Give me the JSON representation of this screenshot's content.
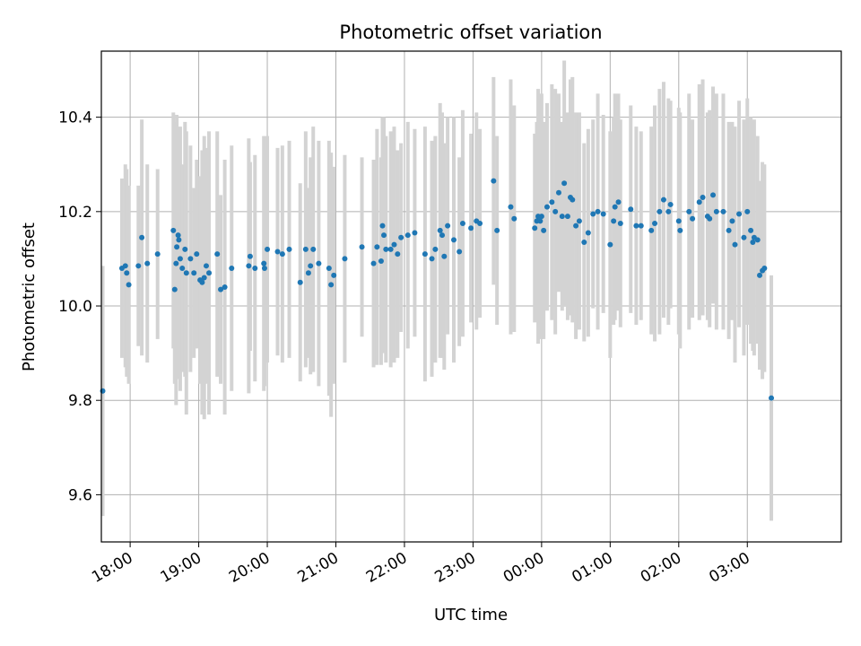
{
  "chart_data": {
    "type": "scatter",
    "title": "Photometric offset variation",
    "xlabel": "UTC time",
    "ylabel": "Photometric offset",
    "xlim": [
      17.58,
      28.37
    ],
    "ylim": [
      9.5,
      10.54
    ],
    "grid": true,
    "x_ticks": [
      {
        "value": 18,
        "label": "18:00"
      },
      {
        "value": 19,
        "label": "19:00"
      },
      {
        "value": 20,
        "label": "20:00"
      },
      {
        "value": 21,
        "label": "21:00"
      },
      {
        "value": 22,
        "label": "22:00"
      },
      {
        "value": 23,
        "label": "23:00"
      },
      {
        "value": 24,
        "label": "00:00"
      },
      {
        "value": 25,
        "label": "01:00"
      },
      {
        "value": 26,
        "label": "02:00"
      },
      {
        "value": 27,
        "label": "03:00"
      }
    ],
    "y_ticks": [
      {
        "value": 9.6,
        "label": "9.6"
      },
      {
        "value": 9.8,
        "label": "9.8"
      },
      {
        "value": 10.0,
        "label": "10.0"
      },
      {
        "value": 10.2,
        "label": "10.2"
      },
      {
        "value": 10.4,
        "label": "10.4"
      }
    ],
    "series": [
      {
        "name": "Photometric offset",
        "marker_color": "#1f77b4",
        "errorbar_color": "#d3d3d3",
        "points": [
          [
            17.6,
            9.82,
            0.265
          ],
          [
            17.88,
            10.08,
            0.19
          ],
          [
            17.93,
            10.085,
            0.215
          ],
          [
            17.95,
            10.07,
            0.22
          ],
          [
            17.98,
            10.045,
            0.21
          ],
          [
            18.12,
            10.085,
            0.17
          ],
          [
            18.17,
            10.145,
            0.25
          ],
          [
            18.25,
            10.09,
            0.21
          ],
          [
            18.4,
            10.11,
            0.18
          ],
          [
            18.63,
            10.16,
            0.25
          ],
          [
            18.65,
            10.035,
            0.2
          ],
          [
            18.67,
            10.09,
            0.3
          ],
          [
            18.68,
            10.125,
            0.28
          ],
          [
            18.7,
            10.15,
            0.22
          ],
          [
            18.71,
            10.14,
            0.235
          ],
          [
            18.73,
            10.1,
            0.28
          ],
          [
            18.76,
            10.08,
            0.22
          ],
          [
            18.8,
            10.12,
            0.27
          ],
          [
            18.82,
            10.07,
            0.3
          ],
          [
            18.88,
            10.1,
            0.24
          ],
          [
            18.93,
            10.07,
            0.18
          ],
          [
            18.97,
            10.11,
            0.2
          ],
          [
            19.02,
            10.055,
            0.22
          ],
          [
            19.05,
            10.05,
            0.28
          ],
          [
            19.08,
            10.06,
            0.3
          ],
          [
            19.11,
            10.085,
            0.25
          ],
          [
            19.15,
            10.07,
            0.3
          ],
          [
            19.27,
            10.11,
            0.26
          ],
          [
            19.32,
            10.035,
            0.2
          ],
          [
            19.38,
            10.04,
            0.27
          ],
          [
            19.48,
            10.08,
            0.26
          ],
          [
            19.73,
            10.085,
            0.27
          ],
          [
            19.75,
            10.105,
            0.2
          ],
          [
            19.82,
            10.08,
            0.24
          ],
          [
            19.95,
            10.09,
            0.27
          ],
          [
            19.96,
            10.08,
            0.25
          ],
          [
            20.0,
            10.12,
            0.24
          ],
          [
            20.15,
            10.115,
            0.22
          ],
          [
            20.22,
            10.11,
            0.23
          ],
          [
            20.32,
            10.12,
            0.23
          ],
          [
            20.48,
            10.05,
            0.21
          ],
          [
            20.56,
            10.12,
            0.25
          ],
          [
            20.6,
            10.07,
            0.18
          ],
          [
            20.63,
            10.085,
            0.23
          ],
          [
            20.67,
            10.12,
            0.26
          ],
          [
            20.75,
            10.09,
            0.26
          ],
          [
            20.9,
            10.08,
            0.27
          ],
          [
            20.93,
            10.045,
            0.28
          ],
          [
            20.97,
            10.065,
            0.23
          ],
          [
            21.13,
            10.1,
            0.22
          ],
          [
            21.38,
            10.125,
            0.19
          ],
          [
            21.55,
            10.09,
            0.22
          ],
          [
            21.6,
            10.125,
            0.25
          ],
          [
            21.66,
            10.095,
            0.22
          ],
          [
            21.68,
            10.17,
            0.23
          ],
          [
            21.7,
            10.15,
            0.25
          ],
          [
            21.73,
            10.12,
            0.24
          ],
          [
            21.8,
            10.12,
            0.25
          ],
          [
            21.85,
            10.13,
            0.25
          ],
          [
            21.9,
            10.11,
            0.22
          ],
          [
            21.95,
            10.145,
            0.2
          ],
          [
            22.05,
            10.15,
            0.24
          ],
          [
            22.15,
            10.155,
            0.22
          ],
          [
            22.3,
            10.11,
            0.27
          ],
          [
            22.4,
            10.1,
            0.25
          ],
          [
            22.45,
            10.12,
            0.24
          ],
          [
            22.52,
            10.16,
            0.27
          ],
          [
            22.55,
            10.15,
            0.26
          ],
          [
            22.58,
            10.105,
            0.24
          ],
          [
            22.63,
            10.17,
            0.23
          ],
          [
            22.72,
            10.14,
            0.26
          ],
          [
            22.8,
            10.115,
            0.2
          ],
          [
            22.85,
            10.175,
            0.24
          ],
          [
            22.97,
            10.165,
            0.2
          ],
          [
            23.05,
            10.18,
            0.23
          ],
          [
            23.1,
            10.175,
            0.2
          ],
          [
            23.3,
            10.265,
            0.22
          ],
          [
            23.35,
            10.16,
            0.2
          ],
          [
            23.55,
            10.21,
            0.27
          ],
          [
            23.6,
            10.185,
            0.24
          ],
          [
            23.9,
            10.165,
            0.2
          ],
          [
            23.93,
            10.18,
            0.21
          ],
          [
            23.95,
            10.19,
            0.27
          ],
          [
            23.98,
            10.18,
            0.22
          ],
          [
            24.0,
            10.19,
            0.26
          ],
          [
            24.03,
            10.16,
            0.23
          ],
          [
            24.08,
            10.21,
            0.22
          ],
          [
            24.15,
            10.22,
            0.25
          ],
          [
            24.2,
            10.2,
            0.26
          ],
          [
            24.25,
            10.24,
            0.21
          ],
          [
            24.3,
            10.19,
            0.2
          ],
          [
            24.33,
            10.26,
            0.26
          ],
          [
            24.38,
            10.19,
            0.22
          ],
          [
            24.42,
            10.23,
            0.25
          ],
          [
            24.45,
            10.225,
            0.26
          ],
          [
            24.5,
            10.17,
            0.24
          ],
          [
            24.55,
            10.18,
            0.23
          ],
          [
            24.62,
            10.135,
            0.21
          ],
          [
            24.68,
            10.155,
            0.22
          ],
          [
            24.75,
            10.195,
            0.2
          ],
          [
            24.82,
            10.2,
            0.25
          ],
          [
            24.9,
            10.195,
            0.21
          ],
          [
            25.0,
            10.13,
            0.24
          ],
          [
            25.05,
            10.18,
            0.22
          ],
          [
            25.07,
            10.21,
            0.24
          ],
          [
            25.12,
            10.22,
            0.23
          ],
          [
            25.15,
            10.175,
            0.22
          ],
          [
            25.3,
            10.205,
            0.22
          ],
          [
            25.38,
            10.17,
            0.21
          ],
          [
            25.45,
            10.17,
            0.2
          ],
          [
            25.6,
            10.16,
            0.22
          ],
          [
            25.65,
            10.175,
            0.25
          ],
          [
            25.72,
            10.2,
            0.26
          ],
          [
            25.78,
            10.225,
            0.25
          ],
          [
            25.85,
            10.2,
            0.24
          ],
          [
            25.88,
            10.215,
            0.22
          ],
          [
            26.0,
            10.18,
            0.24
          ],
          [
            26.02,
            10.16,
            0.25
          ],
          [
            26.15,
            10.2,
            0.25
          ],
          [
            26.2,
            10.185,
            0.21
          ],
          [
            26.3,
            10.22,
            0.25
          ],
          [
            26.35,
            10.23,
            0.25
          ],
          [
            26.42,
            10.19,
            0.22
          ],
          [
            26.45,
            10.185,
            0.23
          ],
          [
            26.5,
            10.235,
            0.23
          ],
          [
            26.55,
            10.2,
            0.25
          ],
          [
            26.65,
            10.2,
            0.25
          ],
          [
            26.73,
            10.16,
            0.23
          ],
          [
            26.78,
            10.18,
            0.21
          ],
          [
            26.82,
            10.13,
            0.25
          ],
          [
            26.88,
            10.195,
            0.24
          ],
          [
            26.95,
            10.145,
            0.25
          ],
          [
            27.0,
            10.2,
            0.24
          ],
          [
            27.05,
            10.16,
            0.24
          ],
          [
            27.08,
            10.135,
            0.23
          ],
          [
            27.1,
            10.145,
            0.25
          ],
          [
            27.15,
            10.14,
            0.22
          ],
          [
            27.18,
            10.065,
            0.2
          ],
          [
            27.22,
            10.075,
            0.23
          ],
          [
            27.25,
            10.08,
            0.22
          ],
          [
            27.35,
            9.805,
            0.26
          ]
        ]
      }
    ]
  }
}
